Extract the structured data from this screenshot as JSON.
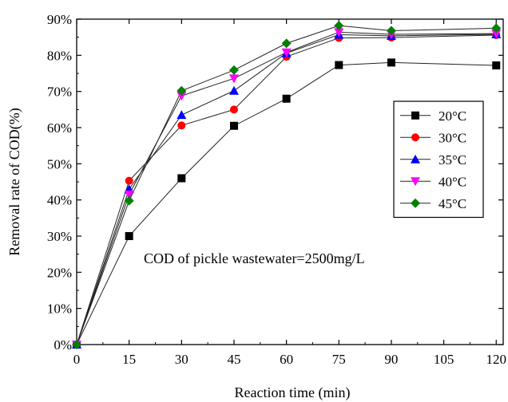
{
  "chart_data": {
    "type": "line",
    "xlabel": "Reaction time (min)",
    "ylabel": "Removal rate of COD(%)",
    "annotation": "COD of pickle wastewater=2500mg/L",
    "xlim": [
      0,
      122
    ],
    "ylim": [
      0,
      90
    ],
    "x_ticks": [
      0,
      15,
      30,
      45,
      60,
      75,
      90,
      105,
      120
    ],
    "x_tick_labels": [
      "0",
      "15",
      "30",
      "45",
      "60",
      "75",
      "90",
      "105",
      "120"
    ],
    "y_ticks": [
      0,
      10,
      20,
      30,
      40,
      50,
      60,
      70,
      80,
      90
    ],
    "y_tick_labels": [
      "0%",
      "10%",
      "20%",
      "30%",
      "40%",
      "50%",
      "60%",
      "70%",
      "80%",
      "90%"
    ],
    "legend_position": "right",
    "x": [
      0,
      15,
      30,
      45,
      60,
      75,
      90,
      120
    ],
    "series": [
      {
        "name": "20°C",
        "marker": "square",
        "color": "#000000",
        "values": [
          0,
          30.0,
          46.0,
          60.5,
          68.0,
          77.3,
          78.0,
          77.2
        ]
      },
      {
        "name": "30°C",
        "marker": "circle",
        "color": "#ff0000",
        "values": [
          0,
          45.3,
          60.6,
          65.0,
          79.6,
          84.8,
          84.9,
          85.6
        ]
      },
      {
        "name": "35°C",
        "marker": "triangle-up",
        "color": "#0000ff",
        "values": [
          0,
          43.0,
          63.5,
          70.2,
          80.6,
          85.7,
          85.4,
          85.8
        ]
      },
      {
        "name": "40°C",
        "marker": "triangle-down",
        "color": "#ff00ff",
        "values": [
          0,
          41.5,
          68.8,
          73.6,
          80.8,
          86.4,
          85.8,
          86.0
        ]
      },
      {
        "name": "45°C",
        "marker": "diamond",
        "color": "#008000",
        "values": [
          0,
          39.8,
          70.2,
          75.9,
          83.3,
          88.2,
          86.8,
          87.5
        ]
      }
    ]
  }
}
